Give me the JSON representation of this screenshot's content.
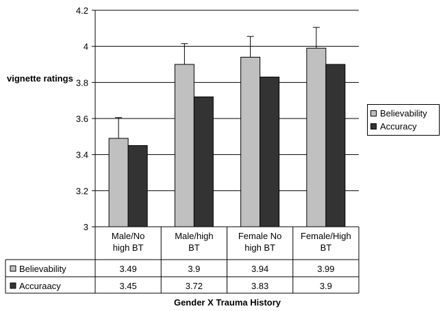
{
  "chart_data": {
    "type": "bar",
    "title": "",
    "xlabel": "Gender X Trauma History",
    "ylabel": "vignette ratings",
    "ylim": [
      3,
      4.2
    ],
    "yticks": [
      "3",
      "3.2",
      "3.4",
      "3.6",
      "3.8",
      "4",
      "4.2"
    ],
    "ytick_values": [
      3,
      3.2,
      3.4,
      3.6,
      3.8,
      4,
      4.2
    ],
    "grid": true,
    "legend_position": "right",
    "categories": [
      "Male/No high BT",
      "Male/high BT",
      "Female No high BT",
      "Female/High BT"
    ],
    "category_lines": [
      [
        "Male/No",
        "high BT"
      ],
      [
        "Male/high",
        "BT"
      ],
      [
        "Female No",
        "high BT"
      ],
      [
        "Female/High",
        "BT"
      ]
    ],
    "series": [
      {
        "name": "Believability",
        "table_label": "Believability",
        "values": [
          3.49,
          3.9,
          3.94,
          3.99
        ],
        "error": [
          0.115,
          0.115,
          0.115,
          0.115
        ],
        "color": "#c0c0c0"
      },
      {
        "name": "Accuracy",
        "table_label": "Accuraacy",
        "values": [
          3.45,
          3.72,
          3.83,
          3.9
        ],
        "color": "#333333"
      }
    ],
    "table_values": [
      [
        "3.49",
        "3.9",
        "3.94",
        "3.99"
      ],
      [
        "3.45",
        "3.72",
        "3.83",
        "3.9"
      ]
    ]
  }
}
